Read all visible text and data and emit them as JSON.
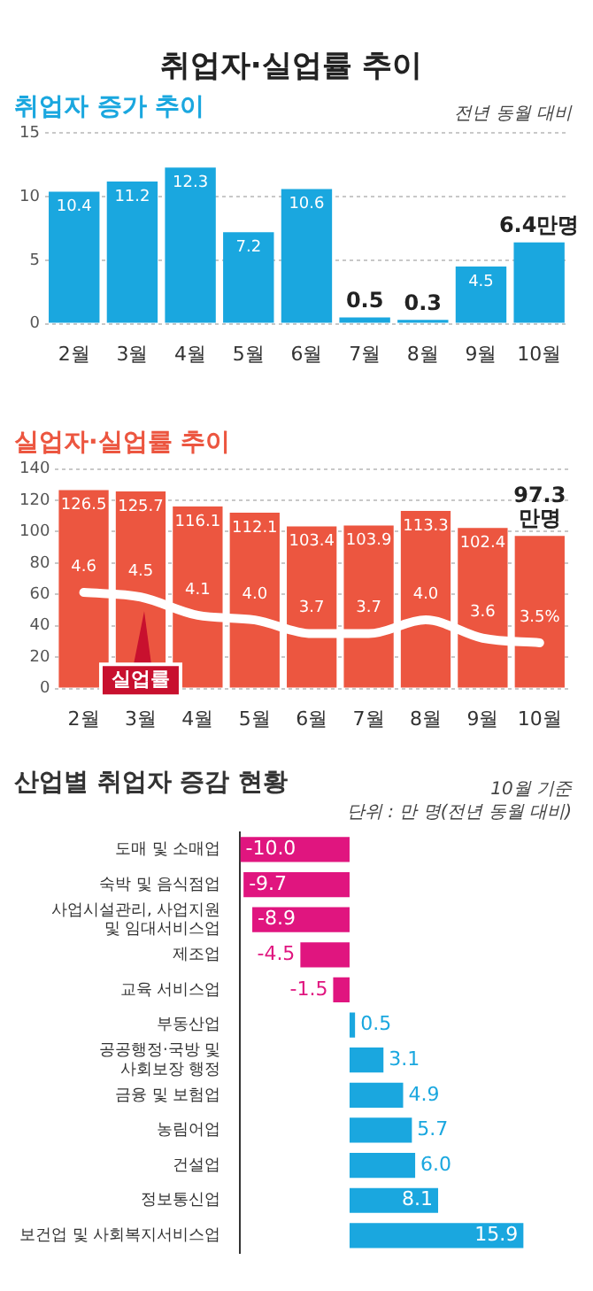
{
  "chart_data": [
    {
      "type": "bar",
      "title": "취업자·실업률 추이",
      "subtitle": "취업자 증가 추이",
      "annotations": [
        "전년 동월 대비"
      ],
      "categories": [
        "2월",
        "3월",
        "4월",
        "5월",
        "6월",
        "7월",
        "8월",
        "9월",
        "10월"
      ],
      "series": [
        {
          "color": "#1aa7df",
          "values": [
            10.4,
            11.2,
            12.3,
            7.2,
            10.6,
            0.5,
            0.3,
            4.5,
            6.4
          ],
          "value_labels": [
            "10.4",
            "11.2",
            "12.3",
            "7.2",
            "10.6",
            "0.5",
            "0.3",
            "4.5",
            "6.4만명"
          ]
        }
      ],
      "ylim": [
        0,
        15
      ],
      "yticks": [
        0,
        5,
        10,
        15
      ],
      "grid": "y",
      "legend": false
    },
    {
      "type": "bar",
      "title": "실업자·실업률 추이",
      "categories": [
        "2월",
        "3월",
        "4월",
        "5월",
        "6월",
        "7월",
        "8월",
        "9월",
        "10월"
      ],
      "series": [
        {
          "color": "#ec5640",
          "values": [
            126.5,
            125.7,
            116.1,
            112.1,
            103.4,
            103.9,
            113.3,
            102.4,
            97.3
          ],
          "value_labels": [
            "126.5",
            "125.7",
            "116.1",
            "112.1",
            "103.4",
            "103.9",
            "113.3",
            "102.4",
            "97.3\n만명"
          ]
        },
        {
          "type": "line",
          "name": "실업률",
          "axis": "y2",
          "color": "#ffffff",
          "marker": "none",
          "values": [
            4.6,
            4.5,
            4.1,
            4.0,
            3.7,
            3.7,
            4.0,
            3.6,
            3.5
          ],
          "value_labels": [
            "4.6",
            "4.5",
            "4.1",
            "4.0",
            "3.7",
            "3.7",
            "4.0",
            "3.6",
            "3.5%"
          ]
        }
      ],
      "ylim": [
        0,
        140
      ],
      "yticks": [
        0,
        20,
        40,
        60,
        80,
        100,
        120,
        140
      ],
      "y2lim": [
        2.5,
        7.3
      ],
      "grid": "y",
      "legend": false
    },
    {
      "type": "bar",
      "orientation": "horizontal",
      "title": "산업별 취업자 증감 현황",
      "annotations": [
        "10월 기준",
        "단위 : 만 명(전년 동월 대비)"
      ],
      "categories": [
        "도매 및 소매업",
        "숙박 및 음식점업",
        "사업시설관리, 사업지원 및 임대서비스업",
        "제조업",
        "교육 서비스업",
        "부동산업",
        "공공행정·국방 및 사회보장 행정",
        "금융 및 보험업",
        "농림어업",
        "건설업",
        "정보통신업",
        "보건업 및 사회복지서비스업"
      ],
      "series": [
        {
          "colors": [
            "#e0157f",
            "#e0157f",
            "#e0157f",
            "#e0157f",
            "#e0157f",
            "#1aa7df",
            "#1aa7df",
            "#1aa7df",
            "#1aa7df",
            "#1aa7df",
            "#1aa7df",
            "#1aa7df"
          ],
          "values": [
            -10.0,
            -9.7,
            -8.9,
            -4.5,
            -1.5,
            0.5,
            3.1,
            4.9,
            5.7,
            6.0,
            8.1,
            15.9
          ],
          "value_labels": [
            "-10.0",
            "-9.7",
            "-8.9",
            "-4.5",
            "-1.5",
            "0.5",
            "3.1",
            "4.9",
            "5.7",
            "6.0",
            "8.1",
            "15.9"
          ]
        }
      ],
      "tick_labels": "y",
      "legend": false
    }
  ]
}
